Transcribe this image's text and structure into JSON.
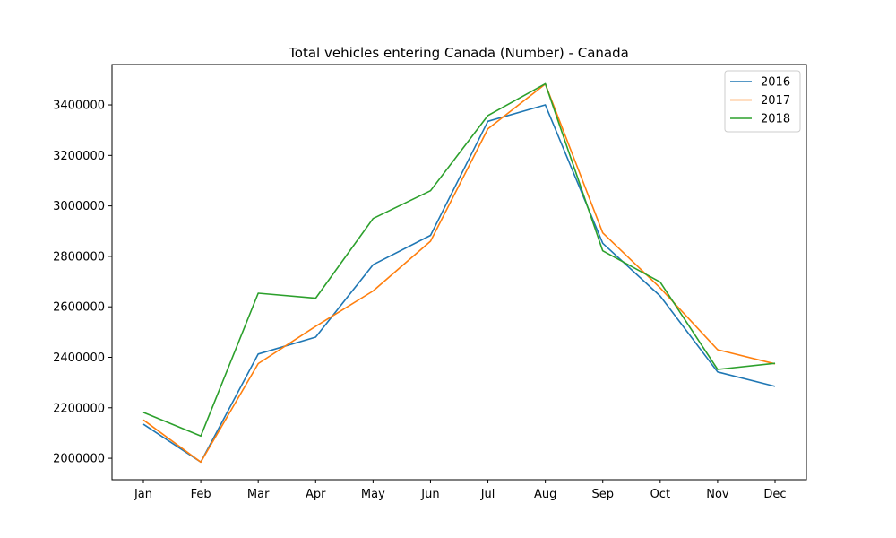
{
  "chart_data": {
    "type": "line",
    "title": "Total vehicles entering Canada (Number) - Canada",
    "xlabel": "",
    "ylabel": "",
    "categories": [
      "Jan",
      "Feb",
      "Mar",
      "Apr",
      "May",
      "Jun",
      "Jul",
      "Aug",
      "Sep",
      "Oct",
      "Nov",
      "Dec"
    ],
    "yticks": [
      2000000,
      2200000,
      2400000,
      2600000,
      2800000,
      3000000,
      3200000,
      3400000
    ],
    "ylim": [
      1915000,
      3560000
    ],
    "grid": false,
    "legend_position": "top-right",
    "series": [
      {
        "name": "2016",
        "color": "#1f77b4",
        "values": [
          2135000,
          1985000,
          2413000,
          2480000,
          2767000,
          2883000,
          3335000,
          3400000,
          2852000,
          2643000,
          2342000,
          2285000
        ]
      },
      {
        "name": "2017",
        "color": "#ff7f0e",
        "values": [
          2152000,
          1985000,
          2375000,
          2523000,
          2663000,
          2860000,
          3305000,
          3483000,
          2893000,
          2675000,
          2430000,
          2374000
        ]
      },
      {
        "name": "2018",
        "color": "#2ca02c",
        "values": [
          2182000,
          2088000,
          2654000,
          2634000,
          2950000,
          3060000,
          3358000,
          3484000,
          2822000,
          2698000,
          2352000,
          2376000
        ]
      }
    ]
  }
}
